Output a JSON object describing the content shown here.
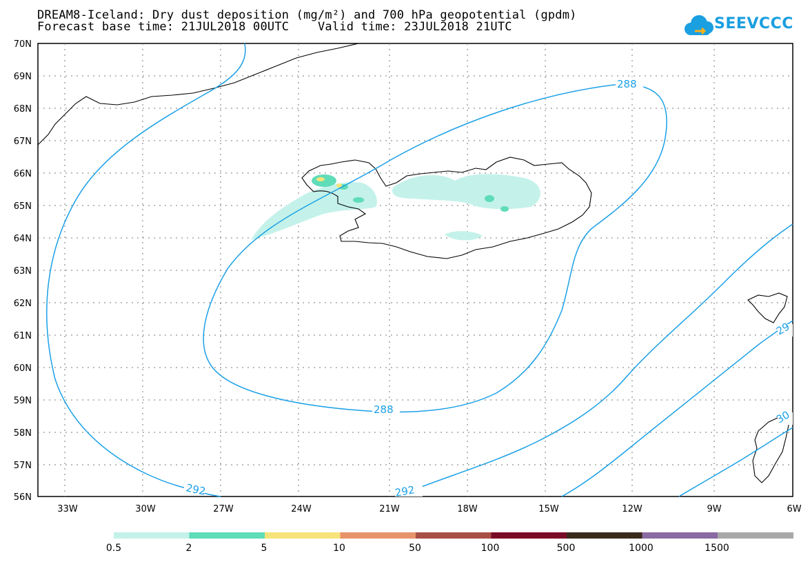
{
  "title": {
    "line1": "DREAM8-Iceland: Dry dust deposition (mg/m²) and 700 hPa geopotential (gpdm)",
    "line2": "Forecast base time: 21JUL2018 00UTC    Valid time: 23JUL2018 21UTC"
  },
  "logo": {
    "text": "SEEVCCC",
    "color": "#1a9fe0"
  },
  "axes": {
    "lat_labels": [
      "70N",
      "69N",
      "68N",
      "67N",
      "66N",
      "65N",
      "64N",
      "63N",
      "62N",
      "61N",
      "60N",
      "59N",
      "58N",
      "57N",
      "56N"
    ],
    "lon_labels": [
      "33W",
      "30W",
      "27W",
      "24W",
      "21W",
      "18W",
      "15W",
      "12W",
      "9W",
      "6W"
    ]
  },
  "contours": {
    "color": "#1aa0e6",
    "labels": [
      "288",
      "288",
      "292",
      "292",
      "29",
      "30"
    ]
  },
  "legend": {
    "colors": [
      "#c4f2ea",
      "#5fdcb8",
      "#f6e47a",
      "#e8936a",
      "#a94f46",
      "#7a0b28",
      "#3a2a1c",
      "#8a6aa2",
      "#a8a8a8"
    ],
    "labels": [
      "0.5",
      "2",
      "5",
      "10",
      "50",
      "100",
      "500",
      "1000",
      "1500"
    ]
  }
}
